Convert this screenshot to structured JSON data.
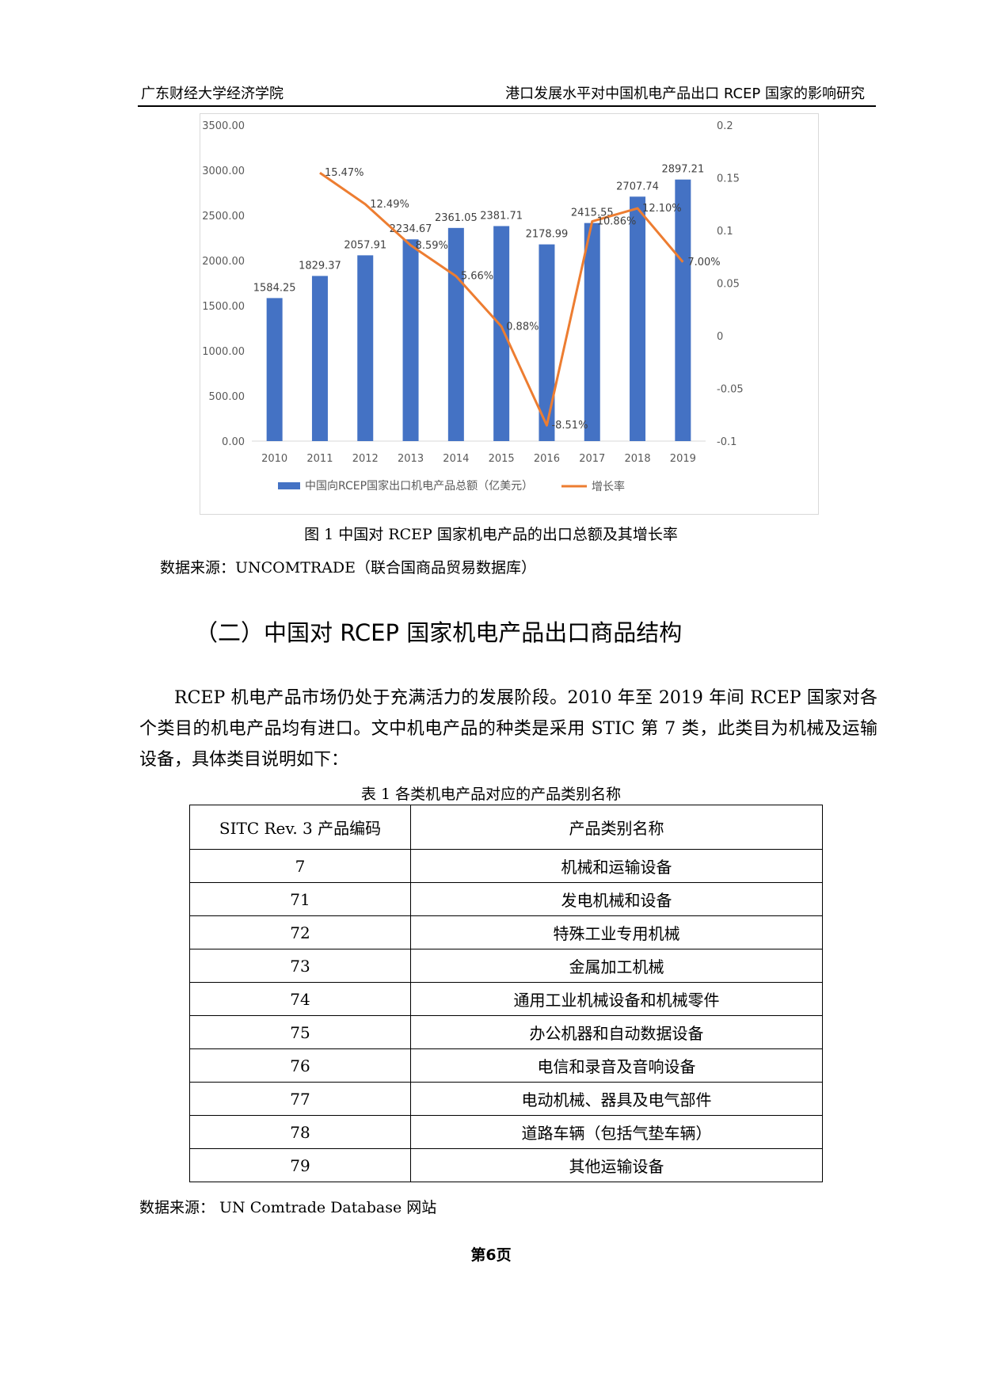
{
  "header": {
    "left": "广东财经大学经济学院",
    "right": "港口发展水平对中国机电产品出口 RCEP 国家的影响研究"
  },
  "figure": {
    "caption": "图 1  中国对 RCEP 国家机电产品的出口总额及其增长率",
    "source": "数据来源：UNCOMTRADE（联合国商品贸易数据库）"
  },
  "chart_data": {
    "type": "bar",
    "categories": [
      "2010",
      "2011",
      "2012",
      "2013",
      "2014",
      "2015",
      "2016",
      "2017",
      "2018",
      "2019"
    ],
    "series": [
      {
        "name": "中国向RCEP国家出口机电产品总额（亿美元）",
        "type": "bar",
        "axis": "left",
        "values": [
          1584.25,
          1829.37,
          2057.91,
          2234.67,
          2361.05,
          2381.71,
          2178.99,
          2415.55,
          2707.74,
          2897.21
        ],
        "labels": [
          "1584.25",
          "1829.37",
          "2057.91",
          "2234.67",
          "2361.05",
          "2381.71",
          "2178.99",
          "2415.55",
          "2707.74",
          "2897.21"
        ]
      },
      {
        "name": "增长率",
        "type": "line",
        "axis": "right",
        "values": [
          null,
          0.1547,
          0.1249,
          0.0859,
          0.0566,
          0.0088,
          -0.0851,
          0.1086,
          0.121,
          0.07
        ],
        "labels": [
          "",
          "15.47%",
          "12.49%",
          "8.59%",
          "5.66%",
          "0.88%",
          "-8.51%",
          "10.86%",
          "12.10%",
          "7.00%"
        ]
      }
    ],
    "ylim_left": [
      0,
      3500
    ],
    "yticks_left": [
      "0.00",
      "500.00",
      "1000.00",
      "1500.00",
      "2000.00",
      "2500.00",
      "3000.00",
      "3500.00"
    ],
    "ylim_right": [
      -0.1,
      0.2
    ],
    "yticks_right": [
      "-0.1",
      "-0.05",
      "0",
      "0.05",
      "0.1",
      "0.15",
      "0.2"
    ],
    "legend_position": "bottom",
    "grid": false,
    "colors": {
      "bar": "#4472c4",
      "line": "#ed7d31",
      "text": "#595959"
    }
  },
  "section": {
    "title": "（二）中国对 RCEP 国家机电产品出口商品结构",
    "paragraph": "RCEP 机电产品市场仍处于充满活力的发展阶段。2010 年至 2019 年间 RCEP 国家对各个类目的机电产品均有进口。文中机电产品的种类是采用 STIC 第 7 类，此类目为机械及运输设备，具体类目说明如下："
  },
  "table": {
    "caption": "表 1  各类机电产品对应的产品类别名称",
    "headers": [
      "SITC Rev. 3  产品编码",
      "产品类别名称"
    ],
    "rows": [
      [
        "7",
        "机械和运输设备"
      ],
      [
        "71",
        "发电机械和设备"
      ],
      [
        "72",
        "特殊工业专用机械"
      ],
      [
        "73",
        "金属加工机械"
      ],
      [
        "74",
        "通用工业机械设备和机械零件"
      ],
      [
        "75",
        "办公机器和自动数据设备"
      ],
      [
        "76",
        "电信和录音及音响设备"
      ],
      [
        "77",
        "电动机械、器具及电气部件"
      ],
      [
        "78",
        "道路车辆（包括气垫车辆）"
      ],
      [
        "79",
        "其他运输设备"
      ]
    ],
    "source": "数据来源：  UN Comtrade Database 网站"
  },
  "page_number": "第6页"
}
